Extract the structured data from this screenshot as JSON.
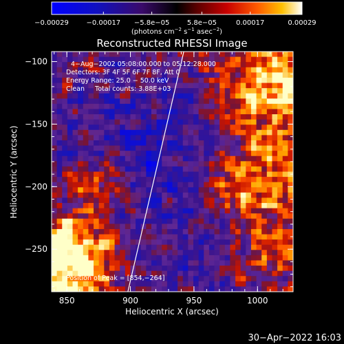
{
  "chart_data": {
    "type": "heatmap",
    "title": "Reconstructed RHESSI Image",
    "xlabel": "Heliocentric X (arcsec)",
    "ylabel": "Heliocentric Y (arcsec)",
    "xlim": [
      838,
      1028
    ],
    "ylim": [
      -284,
      -92
    ],
    "x_ticks": [
      850,
      900,
      950,
      1000
    ],
    "y_ticks": [
      -100,
      -150,
      -200,
      -250
    ],
    "x_tick_labels": [
      "850",
      "900",
      "950",
      "1000"
    ],
    "y_tick_labels": [
      "−100",
      "−150",
      "−200",
      "−250"
    ],
    "colorbar": {
      "range": [
        -0.00029,
        0.00029
      ],
      "tick_labels": [
        "−0.00029",
        "−0.00017",
        "−5.8e−05",
        "5.8e−05",
        "0.00017",
        "0.00029"
      ],
      "units_prefix": "(photons cm",
      "units_exp1": "−2",
      "units_mid": " s",
      "units_exp2": "−1",
      "units_mid2": " asec",
      "units_exp3": "−2",
      "units_suffix": ")"
    },
    "annotations": [
      "4−Aug−2002 05:08:00.000  to 05:12:28.000",
      "Detectors: 3F 4F 5F 6F 7F 8F, Att 0",
      "Energy Range: 25.0 − 50.0 keV",
      "Clean     Total counts: 3.88E+03"
    ],
    "peak_label": "Position of Peak = [854,−264]",
    "limb_line": [
      [
        898,
        -284
      ],
      [
        942,
        -92
      ]
    ],
    "grid": false
  },
  "footer": {
    "date": "30−Apr−2022 16:03"
  }
}
